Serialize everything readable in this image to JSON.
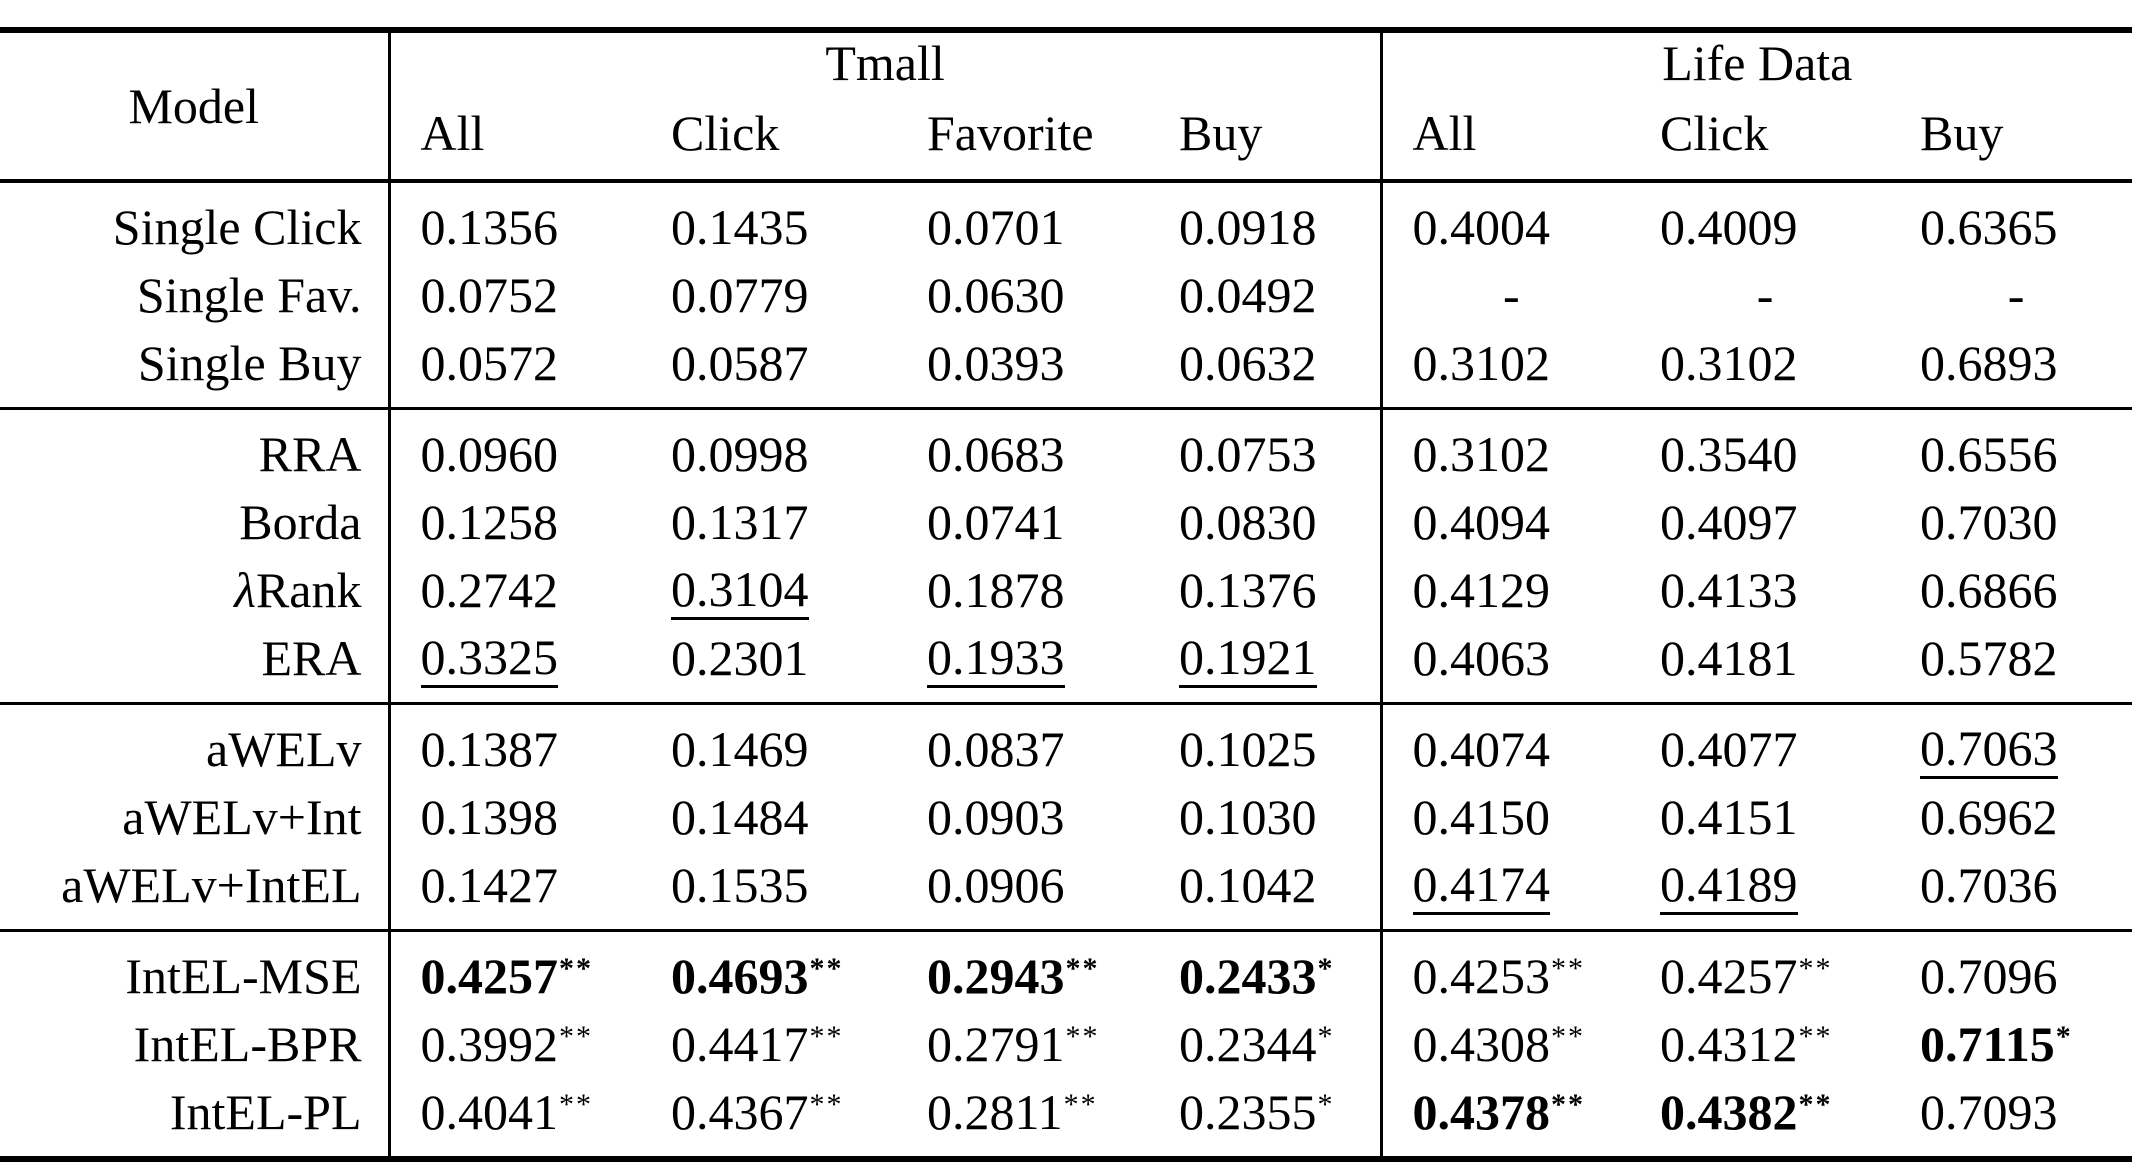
{
  "table": {
    "header": {
      "model_label": "Model",
      "groups": [
        {
          "label": "Tmall",
          "columns": [
            "All",
            "Click",
            "Favorite",
            "Buy"
          ]
        },
        {
          "label": "Life Data",
          "columns": [
            "All",
            "Click",
            "Buy"
          ]
        }
      ]
    },
    "row_groups": [
      {
        "rows": [
          {
            "model": "Single Click",
            "cells": [
              {
                "text": "0.1356"
              },
              {
                "text": "0.1435"
              },
              {
                "text": "0.0701"
              },
              {
                "text": "0.0918"
              },
              {
                "text": "0.4004"
              },
              {
                "text": "0.4009"
              },
              {
                "text": "0.6365"
              }
            ]
          },
          {
            "model": "Single Fav.",
            "cells": [
              {
                "text": "0.0752"
              },
              {
                "text": "0.0779"
              },
              {
                "text": "0.0630"
              },
              {
                "text": "0.0492"
              },
              {
                "text": "-"
              },
              {
                "text": "-"
              },
              {
                "text": "-"
              }
            ]
          },
          {
            "model": "Single Buy",
            "cells": [
              {
                "text": "0.0572"
              },
              {
                "text": "0.0587"
              },
              {
                "text": "0.0393"
              },
              {
                "text": "0.0632"
              },
              {
                "text": "0.3102"
              },
              {
                "text": "0.3102"
              },
              {
                "text": "0.6893"
              }
            ]
          }
        ]
      },
      {
        "rows": [
          {
            "model": "RRA",
            "cells": [
              {
                "text": "0.0960"
              },
              {
                "text": "0.0998"
              },
              {
                "text": "0.0683"
              },
              {
                "text": "0.0753"
              },
              {
                "text": "0.3102"
              },
              {
                "text": "0.3540"
              },
              {
                "text": "0.6556"
              }
            ]
          },
          {
            "model": "Borda",
            "cells": [
              {
                "text": "0.1258"
              },
              {
                "text": "0.1317"
              },
              {
                "text": "0.0741"
              },
              {
                "text": "0.0830"
              },
              {
                "text": "0.4094"
              },
              {
                "text": "0.4097"
              },
              {
                "text": "0.7030"
              }
            ]
          },
          {
            "model": "λRank",
            "cells": [
              {
                "text": "0.2742"
              },
              {
                "text": "0.3104",
                "underline": true
              },
              {
                "text": "0.1878"
              },
              {
                "text": "0.1376"
              },
              {
                "text": "0.4129"
              },
              {
                "text": "0.4133"
              },
              {
                "text": "0.6866"
              }
            ]
          },
          {
            "model": "ERA",
            "cells": [
              {
                "text": "0.3325",
                "underline": true
              },
              {
                "text": "0.2301"
              },
              {
                "text": "0.1933",
                "underline": true
              },
              {
                "text": "0.1921",
                "underline": true
              },
              {
                "text": "0.4063"
              },
              {
                "text": "0.4181"
              },
              {
                "text": "0.5782"
              }
            ]
          }
        ]
      },
      {
        "rows": [
          {
            "model": "aWELv",
            "cells": [
              {
                "text": "0.1387"
              },
              {
                "text": "0.1469"
              },
              {
                "text": "0.0837"
              },
              {
                "text": "0.1025"
              },
              {
                "text": "0.4074"
              },
              {
                "text": "0.4077"
              },
              {
                "text": "0.7063",
                "underline": true
              }
            ]
          },
          {
            "model": "aWELv+Int",
            "cells": [
              {
                "text": "0.1398"
              },
              {
                "text": "0.1484"
              },
              {
                "text": "0.0903"
              },
              {
                "text": "0.1030"
              },
              {
                "text": "0.4150"
              },
              {
                "text": "0.4151"
              },
              {
                "text": "0.6962"
              }
            ]
          },
          {
            "model": "aWELv+IntEL",
            "cells": [
              {
                "text": "0.1427"
              },
              {
                "text": "0.1535"
              },
              {
                "text": "0.0906"
              },
              {
                "text": "0.1042"
              },
              {
                "text": "0.4174",
                "underline": true
              },
              {
                "text": "0.4189",
                "underline": true
              },
              {
                "text": "0.7036"
              }
            ]
          }
        ]
      },
      {
        "rows": [
          {
            "model": "IntEL-MSE",
            "cells": [
              {
                "text": "0.4257",
                "sup": "**",
                "bold": true
              },
              {
                "text": "0.4693",
                "sup": "**",
                "bold": true
              },
              {
                "text": "0.2943",
                "sup": "**",
                "bold": true
              },
              {
                "text": "0.2433",
                "sup": "*",
                "bold": true
              },
              {
                "text": "0.4253",
                "sup": "**"
              },
              {
                "text": "0.4257",
                "sup": "**"
              },
              {
                "text": "0.7096"
              }
            ]
          },
          {
            "model": "IntEL-BPR",
            "cells": [
              {
                "text": "0.3992",
                "sup": "**"
              },
              {
                "text": "0.4417",
                "sup": "**"
              },
              {
                "text": "0.2791",
                "sup": "**"
              },
              {
                "text": "0.2344",
                "sup": "*"
              },
              {
                "text": "0.4308",
                "sup": "**"
              },
              {
                "text": "0.4312",
                "sup": "**"
              },
              {
                "text": "0.7115",
                "sup": "*",
                "bold": true
              }
            ]
          },
          {
            "model": "IntEL-PL",
            "cells": [
              {
                "text": "0.4041",
                "sup": "**"
              },
              {
                "text": "0.4367",
                "sup": "**"
              },
              {
                "text": "0.2811",
                "sup": "**"
              },
              {
                "text": "0.2355",
                "sup": "*"
              },
              {
                "text": "0.4378",
                "sup": "**",
                "bold": true
              },
              {
                "text": "0.4382",
                "sup": "**",
                "bold": true
              },
              {
                "text": "0.7093"
              }
            ]
          }
        ]
      }
    ]
  }
}
